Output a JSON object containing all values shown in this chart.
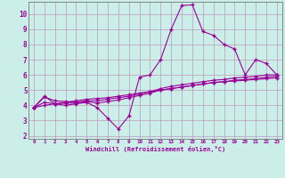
{
  "xlabel": "Windchill (Refroidissement éolien,°C)",
  "bg_color": "#cceee8",
  "grid_color": "#bb99bb",
  "line_color": "#990099",
  "spine_color": "#777777",
  "xlim": [
    -0.5,
    23.5
  ],
  "ylim": [
    1.8,
    10.8
  ],
  "xticks": [
    0,
    1,
    2,
    3,
    4,
    5,
    6,
    7,
    8,
    9,
    10,
    11,
    12,
    13,
    14,
    15,
    16,
    17,
    18,
    19,
    20,
    21,
    22,
    23
  ],
  "yticks": [
    2,
    3,
    4,
    5,
    6,
    7,
    8,
    9,
    10
  ],
  "line1_x": [
    0,
    1,
    2,
    3,
    4,
    5,
    6,
    7,
    8,
    9,
    10,
    11,
    12,
    13,
    14,
    15,
    16,
    17,
    18,
    19,
    20,
    21,
    22,
    23
  ],
  "line1_y": [
    3.85,
    4.6,
    4.1,
    4.0,
    4.1,
    4.2,
    3.85,
    3.15,
    2.45,
    3.3,
    5.85,
    6.0,
    7.0,
    9.0,
    10.55,
    10.6,
    8.85,
    8.6,
    8.0,
    7.7,
    6.0,
    7.0,
    6.75,
    6.0
  ],
  "line2_x": [
    0,
    1,
    2,
    3,
    4,
    5,
    6,
    7,
    8,
    9,
    10,
    11,
    12,
    13,
    14,
    15,
    16,
    17,
    18,
    19,
    20,
    21,
    22,
    23
  ],
  "line2_y": [
    3.85,
    4.55,
    4.3,
    4.25,
    4.2,
    4.3,
    4.3,
    4.4,
    4.5,
    4.6,
    4.75,
    4.9,
    5.1,
    5.25,
    5.35,
    5.45,
    5.55,
    5.65,
    5.7,
    5.8,
    5.85,
    5.9,
    6.0,
    6.0
  ],
  "line3_x": [
    0,
    1,
    2,
    3,
    4,
    5,
    6,
    7,
    8,
    9,
    10,
    11,
    12,
    13,
    14,
    15,
    16,
    17,
    18,
    19,
    20,
    21,
    22,
    23
  ],
  "line3_y": [
    3.85,
    4.2,
    4.1,
    4.15,
    4.15,
    4.25,
    4.15,
    4.25,
    4.35,
    4.5,
    4.65,
    4.8,
    5.0,
    5.1,
    5.2,
    5.3,
    5.4,
    5.5,
    5.55,
    5.6,
    5.65,
    5.7,
    5.75,
    5.8
  ],
  "line4_x": [
    0,
    1,
    2,
    3,
    4,
    5,
    6,
    7,
    8,
    9,
    10,
    11,
    12,
    13,
    14,
    15,
    16,
    17,
    18,
    19,
    20,
    21,
    22,
    23
  ],
  "line4_y": [
    3.85,
    4.0,
    4.1,
    4.2,
    4.3,
    4.4,
    4.45,
    4.5,
    4.6,
    4.7,
    4.8,
    4.9,
    5.0,
    5.1,
    5.2,
    5.3,
    5.4,
    5.5,
    5.55,
    5.65,
    5.7,
    5.75,
    5.85,
    5.9
  ]
}
